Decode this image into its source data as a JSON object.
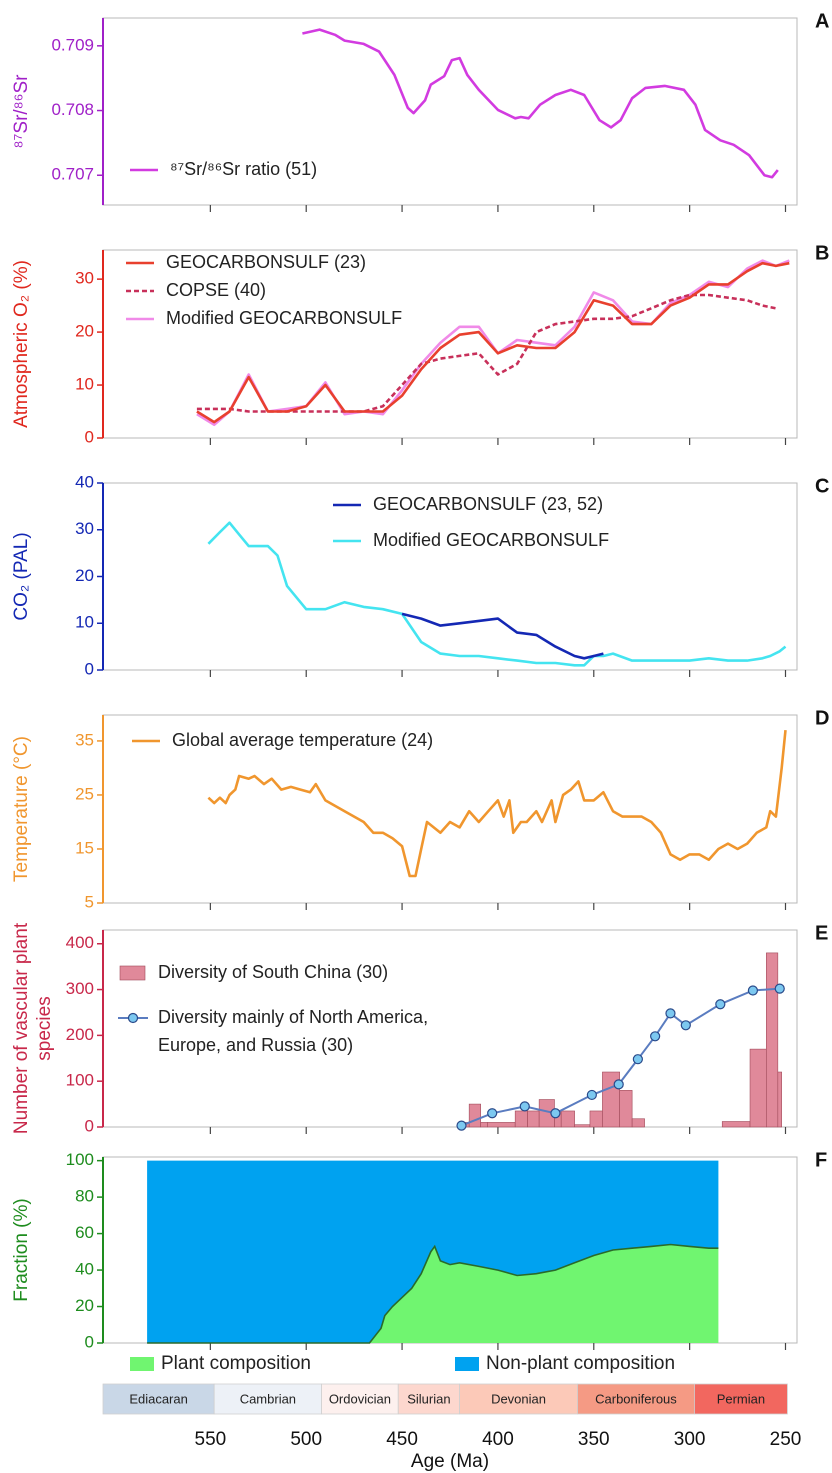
{
  "chart_data": [
    {
      "type": "line",
      "panel_label": "A",
      "ylabel": "⁸⁷Sr/⁸⁶Sr",
      "axis_color": "#a020c8",
      "xlim": [
        606,
        244
      ],
      "xticks": [
        550,
        500,
        450,
        400,
        350,
        300,
        250
      ],
      "ylim": [
        0.70654,
        0.70943
      ],
      "yticks": [
        0.707,
        0.708,
        0.709
      ],
      "x": [
        502,
        493,
        485,
        480,
        470,
        462,
        454,
        447,
        444,
        438,
        435,
        428,
        424,
        420,
        416,
        410,
        400,
        391,
        388,
        384,
        378,
        370,
        362,
        355,
        347,
        341,
        336,
        330,
        323,
        313,
        303,
        297,
        292,
        284,
        277,
        269,
        261,
        257,
        254
      ],
      "series": [
        {
          "name": "⁸⁷Sr/⁸⁶Sr ratio (51)",
          "color": "#d23be0",
          "values": [
            0.70919,
            0.70925,
            0.70917,
            0.70908,
            0.70903,
            0.70891,
            0.70855,
            0.70804,
            0.70796,
            0.70816,
            0.7084,
            0.70853,
            0.70878,
            0.70881,
            0.70855,
            0.70832,
            0.70801,
            0.70788,
            0.7079,
            0.70788,
            0.70809,
            0.70824,
            0.70832,
            0.70824,
            0.70785,
            0.70774,
            0.70785,
            0.70819,
            0.70835,
            0.70838,
            0.70832,
            0.70809,
            0.7077,
            0.70754,
            0.70747,
            0.70731,
            0.707,
            0.70697,
            0.70708
          ]
        }
      ]
    },
    {
      "type": "line",
      "panel_label": "B",
      "ylabel": "Atmospheric O₂ (%)",
      "axis_color": "#e0281e",
      "xlim": [
        606,
        244
      ],
      "xticks": [
        550,
        500,
        450,
        400,
        350,
        300,
        250
      ],
      "ylim": [
        0,
        35.5
      ],
      "yticks": [
        0,
        10,
        20,
        30
      ],
      "x": [
        557,
        548,
        540,
        530,
        520,
        510,
        500,
        490,
        480,
        470,
        460,
        450,
        440,
        430,
        420,
        410,
        400,
        390,
        380,
        370,
        360,
        350,
        340,
        330,
        320,
        310,
        300,
        290,
        280,
        270,
        262,
        255,
        248
      ],
      "series": [
        {
          "name": "GEOCARBONSULF (23)",
          "color": "#e8402e",
          "dash": false,
          "values": [
            5,
            3,
            5,
            11.5,
            5,
            5,
            6,
            10,
            5,
            5,
            5,
            8,
            13,
            17,
            19.5,
            20,
            16,
            17.5,
            17,
            17,
            20,
            26,
            25,
            21.5,
            21.5,
            25,
            26.5,
            29,
            29,
            31.5,
            33,
            32.5,
            33
          ]
        },
        {
          "name": "COPSE (40)",
          "color": "#c8305a",
          "dash": true,
          "values": [
            5.5,
            5.5,
            5.5,
            5,
            5,
            5,
            5,
            5,
            5,
            5,
            6,
            10,
            14,
            15,
            15.5,
            16,
            12,
            14,
            20,
            21.5,
            22,
            22.5,
            22.5,
            23,
            24.5,
            26,
            27,
            27,
            26.5,
            26,
            25,
            24.5,
            null
          ]
        },
        {
          "name": "Modified GEOCARBONSULF",
          "color": "#f08ae8",
          "dash": false,
          "values": [
            4.5,
            2.5,
            5,
            12,
            5,
            5.5,
            6,
            10.5,
            4.5,
            5,
            4.5,
            9,
            14,
            18,
            21,
            21,
            16,
            18.5,
            18,
            17.5,
            21,
            27.5,
            26,
            22,
            21.5,
            25.5,
            27,
            29.5,
            28.5,
            32,
            33.5,
            32.5,
            33.5
          ]
        }
      ]
    },
    {
      "type": "line",
      "panel_label": "C",
      "ylabel": "CO₂ (PAL)",
      "axis_color": "#1428b4",
      "xlim": [
        606,
        244
      ],
      "xticks": [
        550,
        500,
        450,
        400,
        350,
        300,
        250
      ],
      "ylim": [
        0,
        40
      ],
      "yticks": [
        0,
        10,
        20,
        30,
        40
      ],
      "x": [
        551,
        545,
        540,
        535,
        530,
        525,
        520,
        515,
        510,
        500,
        490,
        480,
        470,
        460,
        450,
        440,
        430,
        420,
        410,
        400,
        390,
        380,
        370,
        360,
        355,
        350,
        345,
        340,
        330,
        320,
        310,
        300,
        290,
        280,
        270,
        262,
        258,
        253,
        250
      ],
      "series": [
        {
          "name": "GEOCARBONSULF (23, 52)",
          "color": "#1428b4",
          "dash": false,
          "values": [
            null,
            null,
            null,
            null,
            null,
            null,
            null,
            null,
            null,
            null,
            null,
            null,
            null,
            null,
            12,
            11,
            9.5,
            10,
            10.5,
            11,
            8,
            7.5,
            5,
            3,
            2.5,
            3,
            3.5,
            null,
            null,
            null,
            null,
            null,
            null,
            null,
            null,
            null,
            null,
            null,
            null
          ]
        },
        {
          "name": "Modified GEOCARBONSULF",
          "color": "#44e4f0",
          "dash": false,
          "values": [
            27,
            29.5,
            31.5,
            29,
            26.5,
            26.5,
            26.5,
            24.5,
            18,
            13,
            13,
            14.5,
            13.5,
            13,
            12,
            6,
            3.5,
            3,
            3,
            2.5,
            2,
            1.5,
            1.5,
            1,
            1,
            3,
            3,
            3.5,
            2,
            2,
            2,
            2,
            2.5,
            2,
            2,
            2.5,
            3,
            4,
            5
          ]
        }
      ]
    },
    {
      "type": "line",
      "panel_label": "D",
      "ylabel": "Temperature (°C)",
      "axis_color": "#f0962e",
      "xlim": [
        606,
        244
      ],
      "xticks": [
        550,
        500,
        450,
        400,
        350,
        300,
        250
      ],
      "ylim": [
        5,
        39.8
      ],
      "yticks": [
        5,
        15,
        25,
        35
      ],
      "x": [
        551,
        548,
        545,
        542,
        540,
        537,
        535,
        530,
        527,
        522,
        518,
        513,
        508,
        503,
        498,
        495,
        490,
        480,
        470,
        465,
        460,
        455,
        450,
        446,
        443,
        440,
        437,
        430,
        425,
        420,
        415,
        410,
        405,
        400,
        397,
        394,
        392,
        388,
        385,
        380,
        377,
        372,
        370,
        366,
        362,
        358,
        355,
        350,
        345,
        340,
        335,
        325,
        320,
        315,
        310,
        305,
        300,
        295,
        290,
        285,
        280,
        275,
        270,
        265,
        260,
        258,
        255,
        252,
        250
      ],
      "series": [
        {
          "name": "Global average temperature (24)",
          "color": "#f0962e",
          "dash": false,
          "values": [
            24.5,
            23.5,
            24.5,
            23.5,
            25,
            26,
            28.5,
            28,
            28.5,
            27,
            28,
            26,
            26.5,
            26,
            25.5,
            27,
            24,
            22,
            20,
            18,
            18,
            17,
            15.5,
            10,
            10,
            15,
            20,
            18,
            20,
            19,
            22,
            20,
            22,
            24,
            21,
            24,
            18,
            20,
            20,
            22,
            20,
            24,
            20,
            25,
            26,
            27.5,
            24,
            24,
            25.5,
            22,
            21,
            21,
            20,
            18,
            14,
            13,
            14,
            14,
            13,
            15,
            16,
            15,
            16,
            18,
            19,
            22,
            21,
            30,
            37
          ]
        }
      ]
    },
    {
      "type": "histogram",
      "panel_label": "E",
      "ylabel": [
        "Number of vascular plant",
        "species"
      ],
      "axis_color": "#c8284a",
      "xlim": [
        606,
        244
      ],
      "xticks": [
        550,
        500,
        450,
        400,
        350,
        300,
        250
      ],
      "ylim": [
        0,
        430
      ],
      "yticks": [
        0,
        100,
        200,
        300,
        400
      ],
      "name": "Diversity of South China (30)",
      "color": "#e0899a",
      "bins": [
        418.5,
        415,
        409,
        405.5,
        391,
        384.5,
        378.5,
        370.5,
        367,
        360,
        352,
        345.5,
        336.5,
        330,
        323.5,
        283,
        268.5,
        260,
        254,
        252
      ],
      "values": [
        10,
        50,
        10,
        10,
        35,
        35,
        60,
        35,
        35,
        5,
        35,
        120,
        80,
        18,
        0,
        12,
        170,
        380,
        120
      ],
      "series": [
        {
          "name": [
            "Diversity mainly of North America,",
            "Europe, and Russia (30)"
          ],
          "color": "#5a7cc0",
          "marker_color": "#7cc8f0",
          "x": [
            419,
            403,
            386,
            370,
            351,
            337,
            327,
            318,
            310,
            302,
            284,
            267,
            253
          ],
          "values": [
            3,
            30,
            45,
            30,
            70,
            93,
            148,
            198,
            248,
            222,
            268,
            298,
            302
          ]
        }
      ]
    },
    {
      "type": "area",
      "panel_label": "F",
      "ylabel": "Fraction (%)",
      "axis_color": "#1e8c1e",
      "stacked": true,
      "xlim": [
        606,
        244
      ],
      "xticks": [
        550,
        500,
        450,
        400,
        350,
        300,
        250
      ],
      "xlabel": "Age (Ma)",
      "ylim": [
        0,
        102
      ],
      "yticks": [
        0,
        20,
        40,
        60,
        80,
        100
      ],
      "x": [
        583,
        520,
        480,
        467,
        461,
        459,
        455,
        450,
        445,
        440,
        435,
        433,
        430,
        425,
        420,
        410,
        400,
        390,
        380,
        370,
        360,
        350,
        340,
        330,
        320,
        310,
        300,
        290,
        285
      ],
      "series": [
        {
          "name": "Plant composition",
          "color": "#70f570",
          "line_color": "#2a6a2a",
          "values": [
            0,
            0,
            0,
            0,
            8,
            15,
            20,
            25,
            30,
            38,
            50,
            53,
            45,
            43,
            44,
            42,
            40,
            37,
            38,
            40,
            44,
            48,
            51,
            52,
            53,
            54,
            53,
            52,
            52
          ]
        },
        {
          "name": "Non-plant composition",
          "color": "#00a2f0",
          "values": [
            100,
            100,
            100,
            100,
            92,
            85,
            80,
            75,
            70,
            62,
            50,
            47,
            55,
            57,
            56,
            58,
            60,
            63,
            62,
            60,
            56,
            52,
            49,
            48,
            47,
            46,
            47,
            48,
            48
          ]
        }
      ],
      "periods": {
        "names": [
          "Ediacaran",
          "Cambrian",
          "Ordovician",
          "Silurian",
          "Devonian",
          "Carboniferous",
          "Permian"
        ],
        "colors": [
          "#c9d7e7",
          "#edf1f7",
          "#fdf0ee",
          "#fdd7ce",
          "#fcc9b8",
          "#f59a84",
          "#f2675f"
        ],
        "boundaries": [
          606,
          548,
          492,
          452,
          420,
          358.5,
          297.5,
          249
        ]
      }
    }
  ]
}
